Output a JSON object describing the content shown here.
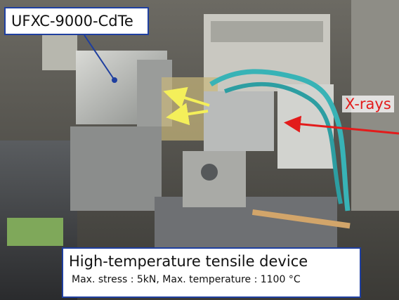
{
  "labels": {
    "detector": "UFXC-9000-CdTe",
    "xrays": "X-rays",
    "device_title": "High-temperature tensile device",
    "device_spec": "Max. stress : 5kN, Max. temperature : 1100 °C"
  }
}
